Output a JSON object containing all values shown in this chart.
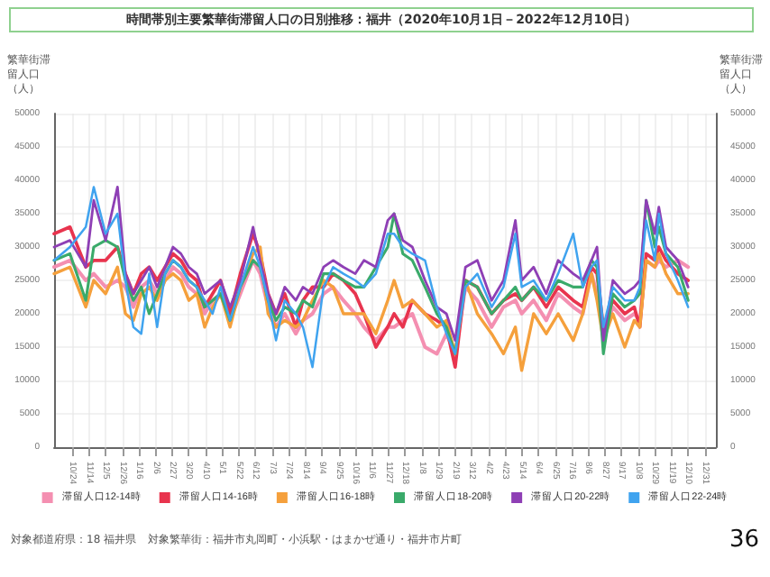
{
  "chart_data": {
    "type": "line",
    "title": "時間帯別主要繁華街滞留人口の日別推移：福井（2020年10月1日－2022年12月10日）",
    "ylabel": "繁華街滞留人口（人）",
    "y2label": "繁華街滞留人口（人）",
    "annotations": [
      "対象都道府県：18 福井県",
      "対象繁華街：福井市丸岡町・小浜駅・はまかぜ通り・福井市片町",
      "36"
    ],
    "x": [
      "2020-10-01",
      "2020-10-21",
      "2020-11-10",
      "2020-11-20",
      "2020-12-05",
      "2020-12-20",
      "2020-12-30",
      "2021-01-09",
      "2021-01-19",
      "2021-01-29",
      "2021-02-08",
      "2021-02-18",
      "2021-02-28",
      "2021-03-10",
      "2021-03-20",
      "2021-03-30",
      "2021-04-09",
      "2021-04-19",
      "2021-04-29",
      "2021-05-11",
      "2021-05-24",
      "2021-06-09",
      "2021-06-18",
      "2021-06-28",
      "2021-07-08",
      "2021-07-19",
      "2021-08-02",
      "2021-08-11",
      "2021-08-23",
      "2021-09-06",
      "2021-09-18",
      "2021-10-01",
      "2021-10-16",
      "2021-10-27",
      "2021-11-11",
      "2021-11-26",
      "2021-12-04",
      "2021-12-15",
      "2021-12-27",
      "2022-01-12",
      "2022-01-27",
      "2022-02-08",
      "2022-02-19",
      "2022-03-04",
      "2022-03-19",
      "2022-04-06",
      "2022-04-21",
      "2022-05-06",
      "2022-05-14",
      "2022-05-29",
      "2022-06-14",
      "2022-06-29",
      "2022-07-18",
      "2022-07-30",
      "2022-08-10",
      "2022-08-17",
      "2022-08-25",
      "2022-09-06",
      "2022-09-21",
      "2022-10-03",
      "2022-10-10",
      "2022-10-18",
      "2022-10-29",
      "2022-11-03",
      "2022-11-12",
      "2022-11-27",
      "2022-12-10"
    ],
    "series": [
      {
        "name": "滞留人口12-14時",
        "color": "#f48fb1",
        "values": [
          27000,
          28000,
          25000,
          26000,
          24000,
          25000,
          24000,
          21000,
          24000,
          25000,
          23000,
          25000,
          27000,
          26000,
          24000,
          23000,
          20000,
          22000,
          23000,
          19000,
          23000,
          28000,
          26000,
          21000,
          18000,
          20000,
          17000,
          19000,
          20000,
          23000,
          24000,
          22000,
          20000,
          18000,
          16000,
          18000,
          18000,
          19000,
          20000,
          15000,
          14000,
          17000,
          14000,
          24000,
          22000,
          18000,
          21000,
          22000,
          20000,
          22000,
          19000,
          23000,
          21000,
          20000,
          26000,
          23000,
          17000,
          21000,
          19000,
          20000,
          19000,
          28000,
          27000,
          28000,
          27000,
          28000,
          27000
        ]
      },
      {
        "name": "滞留人口14-16時",
        "color": "#e8344e",
        "values": [
          32000,
          33000,
          27000,
          28000,
          28000,
          30000,
          26000,
          23000,
          26000,
          27000,
          25000,
          27000,
          29000,
          28000,
          26000,
          25000,
          21000,
          23000,
          25000,
          20000,
          26000,
          32000,
          29000,
          23000,
          20000,
          23000,
          18000,
          22000,
          24000,
          24000,
          26000,
          25000,
          23000,
          20000,
          15000,
          18000,
          20000,
          18000,
          22000,
          20000,
          19000,
          18000,
          12000,
          25000,
          24000,
          20000,
          22000,
          23000,
          22000,
          24000,
          21000,
          24000,
          22000,
          21000,
          27000,
          26000,
          18000,
          22000,
          20000,
          21000,
          18000,
          29000,
          28000,
          30000,
          28000,
          26000,
          25000
        ]
      },
      {
        "name": "滞留人口16-18時",
        "color": "#f5a03c",
        "values": [
          26000,
          27000,
          21000,
          25000,
          23000,
          27000,
          20000,
          19000,
          23000,
          24000,
          22000,
          25000,
          26000,
          25000,
          22000,
          23000,
          18000,
          21000,
          23000,
          18000,
          24000,
          29000,
          30000,
          20000,
          18000,
          19000,
          18000,
          19000,
          22000,
          25000,
          24000,
          20000,
          20000,
          20000,
          17000,
          22000,
          25000,
          21000,
          22000,
          20000,
          18000,
          19000,
          14000,
          25000,
          20000,
          17000,
          14000,
          18000,
          11500,
          20000,
          17000,
          20000,
          16000,
          20000,
          26000,
          22000,
          16000,
          20000,
          15000,
          19000,
          18000,
          28000,
          27000,
          29000,
          26000,
          23000,
          23000
        ]
      },
      {
        "name": "滞留人口18-20時",
        "color": "#3aaa6a",
        "values": [
          28000,
          29000,
          22000,
          30000,
          31000,
          30000,
          25000,
          22000,
          24000,
          20000,
          23000,
          26000,
          28000,
          27000,
          25000,
          24000,
          21000,
          22000,
          23000,
          19000,
          24000,
          28000,
          27000,
          22000,
          19000,
          21000,
          20000,
          22000,
          21000,
          26000,
          26000,
          25000,
          24000,
          24000,
          27000,
          30000,
          35000,
          29000,
          28000,
          24000,
          20000,
          18000,
          14000,
          25000,
          24000,
          20000,
          22000,
          24000,
          22000,
          24000,
          22000,
          25000,
          24000,
          24000,
          28000,
          27000,
          14000,
          23000,
          21000,
          22000,
          23000,
          37000,
          30000,
          33000,
          29000,
          27000,
          22000
        ]
      },
      {
        "name": "滞留人口20-22時",
        "color": "#8e3fb5",
        "values": [
          30000,
          31000,
          27000,
          37000,
          31000,
          39000,
          26000,
          23000,
          25000,
          27000,
          24000,
          27000,
          30000,
          29000,
          27000,
          26000,
          23000,
          24000,
          25000,
          21000,
          25000,
          33000,
          28000,
          23000,
          20000,
          24000,
          22000,
          24000,
          23000,
          27000,
          28000,
          27000,
          26000,
          28000,
          27000,
          34000,
          35000,
          31000,
          30000,
          25000,
          21000,
          20000,
          16000,
          27000,
          28000,
          22000,
          25000,
          34000,
          25000,
          27000,
          23000,
          28000,
          26000,
          25000,
          28000,
          30000,
          16000,
          25000,
          23000,
          24000,
          25000,
          37000,
          32000,
          36000,
          30000,
          28000,
          24000
        ]
      },
      {
        "name": "滞留人口22-24時",
        "color": "#3fa3ef",
        "values": [
          28000,
          30000,
          33000,
          39000,
          32000,
          35000,
          25000,
          18000,
          17000,
          26000,
          18000,
          26000,
          28000,
          27000,
          25000,
          24000,
          22000,
          20000,
          24000,
          19000,
          24000,
          30000,
          27000,
          22000,
          16000,
          22000,
          20000,
          18000,
          12000,
          24000,
          27000,
          26000,
          25000,
          24000,
          26000,
          32000,
          32000,
          30000,
          29000,
          28000,
          21000,
          17000,
          14000,
          24000,
          26000,
          21000,
          24000,
          32000,
          24000,
          25000,
          22000,
          26000,
          32000,
          24000,
          27000,
          28000,
          18000,
          24000,
          22000,
          22000,
          24000,
          34000,
          28000,
          35000,
          29000,
          25000,
          21000
        ]
      }
    ],
    "xlim": [
      "2020-10-01",
      "2023-01-14"
    ],
    "xticks": [
      {
        "value": "2020-10-24",
        "label": "10/24"
      },
      {
        "value": "2020-11-14",
        "label": "11/14"
      },
      {
        "value": "2020-12-05",
        "label": "12/5"
      },
      {
        "value": "2020-12-26",
        "label": "12/26"
      },
      {
        "value": "2021-01-16",
        "label": "1/16"
      },
      {
        "value": "2021-02-06",
        "label": "2/6"
      },
      {
        "value": "2021-02-27",
        "label": "2/27"
      },
      {
        "value": "2021-03-20",
        "label": "3/20"
      },
      {
        "value": "2021-04-10",
        "label": "4/10"
      },
      {
        "value": "2021-05-01",
        "label": "5/1"
      },
      {
        "value": "2021-05-22",
        "label": "5/22"
      },
      {
        "value": "2021-06-12",
        "label": "6/12"
      },
      {
        "value": "2021-07-03",
        "label": "7/3"
      },
      {
        "value": "2021-07-24",
        "label": "7/24"
      },
      {
        "value": "2021-08-14",
        "label": "8/14"
      },
      {
        "value": "2021-09-04",
        "label": "9/4"
      },
      {
        "value": "2021-09-25",
        "label": "9/25"
      },
      {
        "value": "2021-10-16",
        "label": "10/16"
      },
      {
        "value": "2021-11-06",
        "label": "11/6"
      },
      {
        "value": "2021-11-27",
        "label": "11/27"
      },
      {
        "value": "2021-12-18",
        "label": "12/18"
      },
      {
        "value": "2022-01-08",
        "label": "1/8"
      },
      {
        "value": "2022-01-29",
        "label": "1/29"
      },
      {
        "value": "2022-02-19",
        "label": "2/19"
      },
      {
        "value": "2022-03-12",
        "label": "3/12"
      },
      {
        "value": "2022-04-02",
        "label": "4/2"
      },
      {
        "value": "2022-04-23",
        "label": "4/23"
      },
      {
        "value": "2022-05-14",
        "label": "5/14"
      },
      {
        "value": "2022-06-04",
        "label": "6/4"
      },
      {
        "value": "2022-06-25",
        "label": "6/25"
      },
      {
        "value": "2022-07-16",
        "label": "7/16"
      },
      {
        "value": "2022-08-06",
        "label": "8/6"
      },
      {
        "value": "2022-08-27",
        "label": "8/27"
      },
      {
        "value": "2022-09-17",
        "label": "9/17"
      },
      {
        "value": "2022-10-08",
        "label": "10/8"
      },
      {
        "value": "2022-10-29",
        "label": "10/29"
      },
      {
        "value": "2022-11-19",
        "label": "11/19"
      },
      {
        "value": "2022-12-10",
        "label": "12/10"
      },
      {
        "value": "2022-12-31",
        "label": "12/31"
      }
    ],
    "ylim": [
      0,
      50000
    ],
    "yticks": [
      0,
      5000,
      10000,
      15000,
      20000,
      25000,
      30000,
      35000,
      40000,
      45000,
      50000
    ],
    "y2lim": [
      0,
      50000
    ],
    "y2ticks": [
      0,
      5000,
      10000,
      15000,
      20000,
      25000,
      30000,
      35000,
      40000,
      45000,
      50000
    ],
    "grid": true,
    "legend": "bottom",
    "marker": "none",
    "line_style": "solid"
  }
}
